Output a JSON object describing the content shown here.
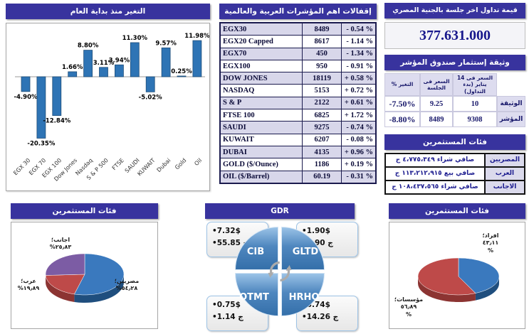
{
  "colors": {
    "header_bg": "#38339E",
    "alt_row": "#D8D7EA",
    "bar_fill": "#2E74B5",
    "bar_stroke": "#1F4E79",
    "pie_blue": "#3A79BE",
    "pie_red": "#BE4A49",
    "pie_purple": "#7C5CA4"
  },
  "panels": {
    "ytd": {
      "title": "التغير منذ بداية العام"
    },
    "indices": {
      "title": "إقفالات اهم المؤشرات العربية والعالمية",
      "rows": [
        {
          "name": "EGX30",
          "close": "8489",
          "change": "- 0.54 %"
        },
        {
          "name": "EGX20 Capped",
          "close": "8617",
          "change": "- 1.14 %"
        },
        {
          "name": "EGX70",
          "close": "450",
          "change": "- 1.34 %"
        },
        {
          "name": "EGX100",
          "close": "950",
          "change": "- 0.91 %"
        },
        {
          "name": "DOW JONES",
          "close": "18119",
          "change": "+ 0.58 %"
        },
        {
          "name": "NASDAQ",
          "close": "5153",
          "change": "+ 0.72 %"
        },
        {
          "name": "S & P",
          "close": "2122",
          "change": "+ 0.61 %"
        },
        {
          "name": "FTSE 100",
          "close": "6825",
          "change": "+ 1.72 %"
        },
        {
          "name": "SAUDI",
          "close": "9275",
          "change": "- 0.74 %"
        },
        {
          "name": "KUWAIT",
          "close": "6207",
          "change": "- 0.08 %"
        },
        {
          "name": "DUBAI",
          "close": "4135",
          "change": "+ 0.96 %"
        },
        {
          "name": "GOLD ($/Ounce)",
          "close": "1186",
          "change": "+ 0.19 %"
        },
        {
          "name": "OIL ($/Barrel)",
          "close": "60.19",
          "change": "- 0.31 %"
        }
      ]
    },
    "trading": {
      "title": "قيمة تداول اخر جلسة بالجنية المصري",
      "value": "377.631.000"
    },
    "fund": {
      "title": "وثيقة إستثمار صندوق المؤشر",
      "headers": {
        "change": "التغير %",
        "session": "السعر فى الجلسة",
        "start": "السعر فى 14 يناير (بدء التداول)"
      },
      "rows": [
        {
          "label": "الوثيقة",
          "start": "10",
          "session": "9.25",
          "change": "-7.50%"
        },
        {
          "label": "المؤشر",
          "start": "9308",
          "session": "8489",
          "change": "-8.80%"
        }
      ]
    },
    "flows": {
      "title": "فئات المستثمرين",
      "rows": [
        {
          "label": "المصريين",
          "value": "صافي شراء ٤،٧٧٥،٣٤٩ ج"
        },
        {
          "label": "العرب",
          "value": "صافي بيع ١١٣،٢١٢،٩١٥ ج"
        },
        {
          "label": "الاجانب",
          "value": "صافي شراء ١٠٨،٤٣٧،٥٦٥ ج"
        }
      ]
    },
    "gdr": {
      "title": "GDR",
      "quadrants": [
        "CIB",
        "GLTD",
        "OTMT",
        "HRHO"
      ],
      "callouts": {
        "tl": {
          "usd": "•7.32$",
          "egp": "•55.85 ج"
        },
        "tr": {
          "usd": "•1.90$",
          "egp": "•2.90 ج"
        },
        "bl": {
          "usd": "•0.75$",
          "egp": "•1.14 ج"
        },
        "br": {
          "usd": "•3.74$",
          "egp": "•14.26 ج"
        }
      }
    },
    "pie_left": {
      "title": "فئات المستثمرين"
    },
    "pie_right": {
      "title": "فئات المستثمرين"
    }
  },
  "chart_data": [
    {
      "id": "ytd_change",
      "type": "bar",
      "title": "التغير منذ بداية العام",
      "categories": [
        "EGX 30",
        "EGX 70",
        "EGX 100",
        "Dow Jones",
        "Nasdaq",
        "S & P 500",
        "FTSE",
        "SAUDI",
        "KUWAIT",
        "Dubai",
        "Gold",
        "Oil"
      ],
      "values": [
        -4.9,
        -20.35,
        -12.84,
        1.66,
        8.8,
        3.11,
        3.94,
        11.3,
        -5.02,
        9.57,
        0.25,
        11.98
      ],
      "unit": "%",
      "ylim": [
        -22,
        13
      ],
      "grid": false,
      "data_labels": true,
      "legend": "none"
    },
    {
      "id": "investors_nationality",
      "type": "pie",
      "title": "فئات المستثمرين",
      "slices": [
        {
          "label": "مصريين؛",
          "value": 54.28,
          "pct_text": "٥٤٫٢٨%",
          "color": "#3A79BE",
          "dark": "#1F4E7E"
        },
        {
          "label": "عرب؛",
          "value": 19.89,
          "pct_text": "١٩٫٨٩%",
          "color": "#BE4A49",
          "dark": "#8C3432"
        },
        {
          "label": "اجانب؛",
          "value": 25.83,
          "pct_text": "٢٥٫٨٣%",
          "color": "#7C5CA4",
          "dark": "#5A4278"
        }
      ]
    },
    {
      "id": "investors_type",
      "type": "pie",
      "title": "فئات المستثمرين",
      "slices": [
        {
          "label": "افراد؛",
          "value": 43.11,
          "pct_text": "٤٣٫١١",
          "pct_sign": "%",
          "color": "#3A79BE",
          "dark": "#1F4E7E"
        },
        {
          "label": "مؤسسات؛",
          "value": 56.89,
          "pct_text": "٥٦٫٨٩",
          "pct_sign": "%",
          "color": "#BE4A49",
          "dark": "#8C3432"
        }
      ]
    }
  ]
}
